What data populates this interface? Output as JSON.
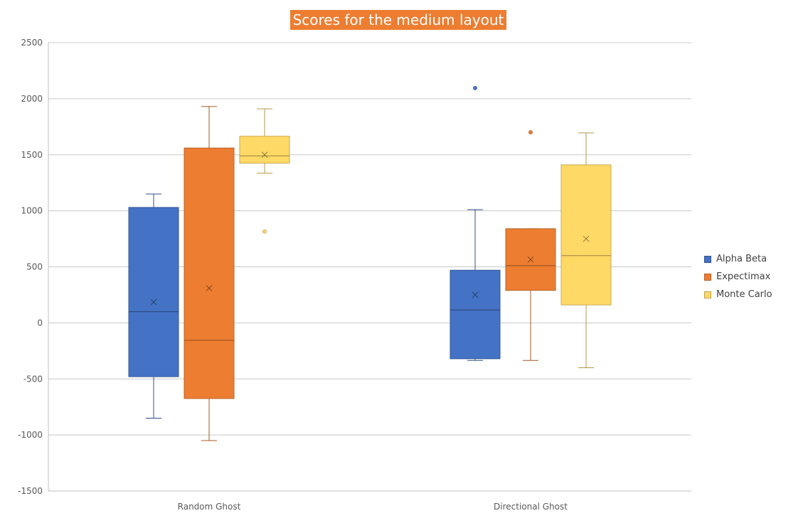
{
  "chart_data": {
    "type": "boxplot",
    "title": "Scores for the medium layout",
    "xlabel": "",
    "ylabel": "",
    "ylim": [
      -1500,
      2500
    ],
    "yticks": [
      2500,
      2000,
      1500,
      1000,
      500,
      0,
      -500,
      -1000,
      -1500
    ],
    "categories": [
      "Random Ghost",
      "Directional Ghost"
    ],
    "grid": true,
    "legend_position": "right",
    "series": [
      {
        "name": "Alpha Beta",
        "color": "#4472C4",
        "boxes": [
          {
            "min": -850,
            "q1": -480,
            "median": 100,
            "q3": 1030,
            "max": 1150,
            "mean": 185,
            "outliers": []
          },
          {
            "min": -335,
            "q1": -320,
            "median": 115,
            "q3": 470,
            "max": 1010,
            "mean": 250,
            "outliers": [
              2095
            ]
          }
        ]
      },
      {
        "name": "Expectimax",
        "color": "#ED7D31",
        "boxes": [
          {
            "min": -1050,
            "q1": -675,
            "median": -155,
            "q3": 1560,
            "max": 1930,
            "mean": 310,
            "outliers": []
          },
          {
            "min": -335,
            "q1": 290,
            "median": 510,
            "q3": 840,
            "max": 840,
            "mean": 565,
            "outliers": [
              1700
            ]
          }
        ]
      },
      {
        "name": "Monte Carlo",
        "color": "#FFD966",
        "boxes": [
          {
            "min": 1335,
            "q1": 1425,
            "median": 1490,
            "q3": 1665,
            "max": 1910,
            "mean": 1500,
            "outliers": [
              815
            ]
          },
          {
            "min": -400,
            "q1": 160,
            "median": 600,
            "q3": 1410,
            "max": 1695,
            "mean": 750,
            "outliers": []
          }
        ]
      }
    ]
  }
}
